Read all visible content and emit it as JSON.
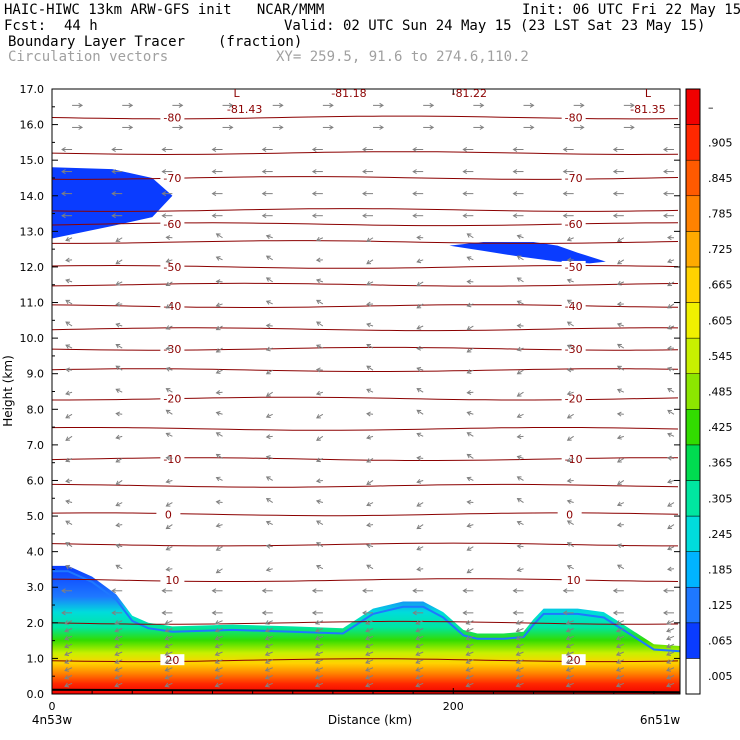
{
  "header": {
    "model_line": "HAIC-HIWC 13km ARW-GFS init   NCAR/MMM",
    "fcst_label": "Fcst:",
    "fcst_value": "44 h",
    "init": "Init: 06 UTC Fri 22 May 15",
    "valid": "Valid: 02 UTC Sun 24 May 15 (23 LST Sat 23 May 15)",
    "field": "Boundary Layer Tracer",
    "field_units": "(fraction)",
    "vectors": "Circulation vectors",
    "xy": "XY= 259.5, 91.6 to 274.6,110.2"
  },
  "chart_data": {
    "type": "heatmap",
    "title": "Boundary Layer Tracer",
    "xlabel": "Distance (km)",
    "ylabel": "Height (km)",
    "xlim": [
      0,
      313
    ],
    "ylim": [
      0,
      17
    ],
    "x_ticks": [
      0,
      200
    ],
    "x_end_labels": [
      "4n53w",
      "6n51w"
    ],
    "y_ticks": [
      "0.0",
      "1.0",
      "2.0",
      "3.0",
      "4.0",
      "5.0",
      "6.0",
      "7.0",
      "8.0",
      "9.0",
      "10.0",
      "11.0",
      "12.0",
      "13.0",
      "14.0",
      "15.0",
      "16.0",
      "17.0"
    ],
    "colorbar": {
      "labels": [
        ".005",
        ".065",
        ".125",
        ".185",
        ".245",
        ".305",
        ".365",
        ".425",
        ".485",
        ".545",
        ".605",
        ".665",
        ".725",
        ".785",
        ".845",
        ".905",
        "–"
      ],
      "colors": [
        "#ffffff",
        "#0a3cff",
        "#1e78ff",
        "#00b4ff",
        "#00dcdc",
        "#00e6a0",
        "#00dc50",
        "#32dc00",
        "#8ce600",
        "#c8f000",
        "#f0f000",
        "#ffd200",
        "#ffaa00",
        "#ff8200",
        "#ff5a00",
        "#ff2800",
        "#f00000"
      ]
    },
    "isotherms": [
      {
        "label": "-80",
        "y": 16.2
      },
      {
        "label": "-70",
        "y": 14.5
      },
      {
        "label": "-60",
        "y": 13.2
      },
      {
        "label": "-50",
        "y": 12.0
      },
      {
        "label": "-40",
        "y": 10.9
      },
      {
        "label": "-30",
        "y": 9.7
      },
      {
        "label": "-20",
        "y": 8.3
      },
      {
        "label": "-10",
        "y": 6.6
      },
      {
        "label": "0",
        "y": 5.05
      },
      {
        "label": "10",
        "y": 3.2
      },
      {
        "label": "20",
        "y": 0.95
      }
    ],
    "extra_isotherm_heights": [
      15.2,
      13.6,
      12.7,
      11.5,
      10.25,
      9.1,
      7.45,
      5.85,
      4.2,
      2.0
    ],
    "annotations": [
      {
        "label": "L",
        "x": 92,
        "y": 17.0
      },
      {
        "label": "-81.43",
        "x": 96,
        "y": 16.55
      },
      {
        "label": "-81.18",
        "x": 148,
        "y": 17.0
      },
      {
        "label": "-81.22",
        "x": 208,
        "y": 17.0
      },
      {
        "label": "L",
        "x": 297,
        "y": 17.0
      },
      {
        "label": "-81.35",
        "x": 297,
        "y": 16.55
      }
    ],
    "tracer_regions": [
      {
        "name": "upper-left",
        "x": [
          0,
          0,
          30,
          50,
          60,
          50,
          30,
          0
        ],
        "y": [
          12.8,
          14.8,
          14.75,
          14.5,
          14.0,
          13.4,
          13.15,
          12.8
        ]
      },
      {
        "name": "upper-right",
        "x": [
          198,
          215,
          240,
          252,
          262,
          276,
          268,
          252,
          232,
          215,
          198
        ],
        "y": [
          12.6,
          12.7,
          12.7,
          12.6,
          12.4,
          12.15,
          12.1,
          12.15,
          12.3,
          12.45,
          12.6
        ]
      }
    ],
    "boundary_layer_top": {
      "x": [
        0,
        8,
        20,
        32,
        40,
        48,
        60,
        90,
        120,
        145,
        160,
        175,
        185,
        195,
        205,
        212,
        225,
        235,
        240,
        245,
        262,
        275,
        282,
        300,
        313
      ],
      "y": [
        3.6,
        3.6,
        3.3,
        2.8,
        2.2,
        2.0,
        1.9,
        1.95,
        1.9,
        1.85,
        2.4,
        2.6,
        2.6,
        2.3,
        1.8,
        1.7,
        1.7,
        1.75,
        2.1,
        2.4,
        2.4,
        2.3,
        2.05,
        1.4,
        1.35
      ]
    }
  }
}
